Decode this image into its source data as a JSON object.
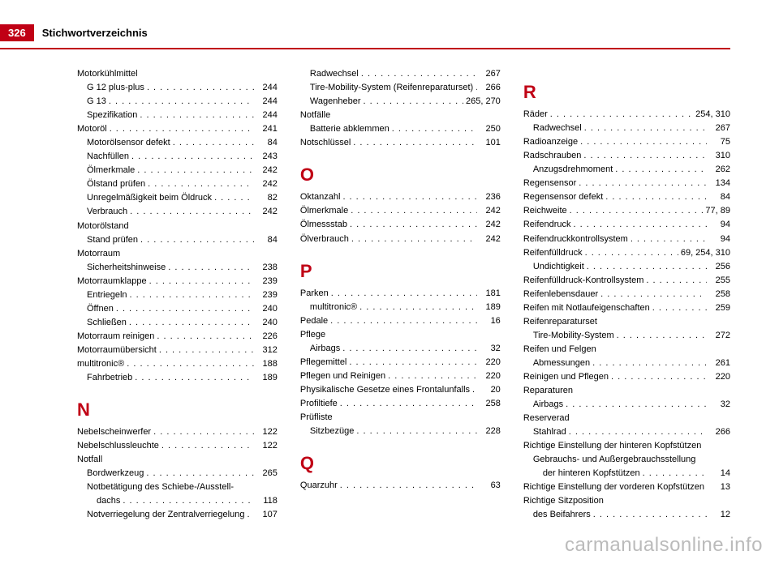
{
  "header": {
    "page_number": "326",
    "title": "Stichwortverzeichnis",
    "accent_color": "#c00015",
    "text_color": "#000000",
    "background": "#ffffff"
  },
  "watermark": "carmanualsonline.info",
  "col1": [
    {
      "t": "heading",
      "label": "Motorkühlmittel"
    },
    {
      "t": "sub",
      "label": "G 12 plus-plus",
      "pg": "244"
    },
    {
      "t": "sub",
      "label": "G 13",
      "pg": "244"
    },
    {
      "t": "sub",
      "label": "Spezifikation",
      "pg": "244"
    },
    {
      "t": "entry",
      "label": "Motoröl",
      "pg": "241"
    },
    {
      "t": "sub",
      "label": "Motorölsensor defekt",
      "pg": "84"
    },
    {
      "t": "sub",
      "label": "Nachfüllen",
      "pg": "243"
    },
    {
      "t": "sub",
      "label": "Ölmerkmale",
      "pg": "242"
    },
    {
      "t": "sub",
      "label": "Ölstand prüfen",
      "pg": "242"
    },
    {
      "t": "sub",
      "label": "Unregelmäßigkeit beim Öldruck",
      "pg": "82"
    },
    {
      "t": "sub",
      "label": "Verbrauch",
      "pg": "242"
    },
    {
      "t": "heading",
      "label": "Motorölstand"
    },
    {
      "t": "sub",
      "label": "Stand prüfen",
      "pg": "84"
    },
    {
      "t": "heading",
      "label": "Motorraum"
    },
    {
      "t": "sub",
      "label": "Sicherheitshinweise",
      "pg": "238"
    },
    {
      "t": "entry",
      "label": "Motorraumklappe",
      "pg": "239"
    },
    {
      "t": "sub",
      "label": "Entriegeln",
      "pg": "239"
    },
    {
      "t": "sub",
      "label": "Öffnen",
      "pg": "240"
    },
    {
      "t": "sub",
      "label": "Schließen",
      "pg": "240"
    },
    {
      "t": "entry",
      "label": "Motorraum reinigen",
      "pg": "226"
    },
    {
      "t": "entry",
      "label": "Motorraumübersicht",
      "pg": "312"
    },
    {
      "t": "entry",
      "label": "multitronic®",
      "pg": "188"
    },
    {
      "t": "sub",
      "label": "Fahrbetrieb",
      "pg": "189"
    },
    {
      "t": "letter",
      "label": "N"
    },
    {
      "t": "entry",
      "label": "Nebelscheinwerfer",
      "pg": "122"
    },
    {
      "t": "entry",
      "label": "Nebelschlussleuchte",
      "pg": "122"
    },
    {
      "t": "heading",
      "label": "Notfall"
    },
    {
      "t": "sub",
      "label": "Bordwerkzeug",
      "pg": "265"
    },
    {
      "t": "subheading",
      "label": "Notbetätigung des Schiebe-/Ausstell-"
    },
    {
      "t": "sub2",
      "label": "dachs",
      "pg": "118"
    },
    {
      "t": "sub",
      "label": "Notverriegelung der Zentralverriegelung",
      "pg": "107"
    }
  ],
  "col2": [
    {
      "t": "sub",
      "label": "Radwechsel",
      "pg": "267"
    },
    {
      "t": "sub",
      "label": "Tire-Mobility-System (Reifenreparaturset)",
      "pg": "266"
    },
    {
      "t": "sub",
      "label": "Wagenheber",
      "pg": "265, 270"
    },
    {
      "t": "heading",
      "label": "Notfälle"
    },
    {
      "t": "sub",
      "label": "Batterie abklemmen",
      "pg": "250"
    },
    {
      "t": "entry",
      "label": "Notschlüssel",
      "pg": "101"
    },
    {
      "t": "letter",
      "label": "O"
    },
    {
      "t": "entry",
      "label": "Oktanzahl",
      "pg": "236"
    },
    {
      "t": "entry",
      "label": "Ölmerkmale",
      "pg": "242"
    },
    {
      "t": "entry",
      "label": "Ölmessstab",
      "pg": "242"
    },
    {
      "t": "entry",
      "label": "Ölverbrauch",
      "pg": "242"
    },
    {
      "t": "letter",
      "label": "P"
    },
    {
      "t": "entry",
      "label": "Parken",
      "pg": "181"
    },
    {
      "t": "sub",
      "label": "multitronic®",
      "pg": "189"
    },
    {
      "t": "entry",
      "label": "Pedale",
      "pg": "16"
    },
    {
      "t": "heading",
      "label": "Pflege"
    },
    {
      "t": "sub",
      "label": "Airbags",
      "pg": "32"
    },
    {
      "t": "entry",
      "label": "Pflegemittel",
      "pg": "220"
    },
    {
      "t": "entry",
      "label": "Pflegen und Reinigen",
      "pg": "220"
    },
    {
      "t": "entry",
      "label": "Physikalische Gesetze eines Frontalunfalls",
      "pg": "20"
    },
    {
      "t": "entry",
      "label": "Profiltiefe",
      "pg": "258"
    },
    {
      "t": "heading",
      "label": "Prüfliste"
    },
    {
      "t": "sub",
      "label": "Sitzbezüge",
      "pg": "228"
    },
    {
      "t": "letter",
      "label": "Q"
    },
    {
      "t": "entry",
      "label": "Quarzuhr",
      "pg": "63"
    }
  ],
  "col3": [
    {
      "t": "letter",
      "label": "R"
    },
    {
      "t": "entry",
      "label": "Räder",
      "pg": "254, 310"
    },
    {
      "t": "sub",
      "label": "Radwechsel",
      "pg": "267"
    },
    {
      "t": "entry",
      "label": "Radioanzeige",
      "pg": "75"
    },
    {
      "t": "entry",
      "label": "Radschrauben",
      "pg": "310"
    },
    {
      "t": "sub",
      "label": "Anzugsdrehmoment",
      "pg": "262"
    },
    {
      "t": "entry",
      "label": "Regensensor",
      "pg": "134"
    },
    {
      "t": "entry",
      "label": "Regensensor defekt",
      "pg": "84"
    },
    {
      "t": "entry",
      "label": "Reichweite",
      "pg": "77, 89"
    },
    {
      "t": "entry",
      "label": "Reifendruck",
      "pg": "94"
    },
    {
      "t": "entry",
      "label": "Reifendruckkontrollsystem",
      "pg": "94"
    },
    {
      "t": "entry",
      "label": "Reifenfülldruck",
      "pg": "69, 254, 310"
    },
    {
      "t": "sub",
      "label": "Undichtigkeit",
      "pg": "256"
    },
    {
      "t": "entry",
      "label": "Reifenfülldruck-Kontrollsystem",
      "pg": "255"
    },
    {
      "t": "entry",
      "label": "Reifenlebensdauer",
      "pg": "258"
    },
    {
      "t": "entry",
      "label": "Reifen mit Notlaufeigenschaften",
      "pg": "259"
    },
    {
      "t": "heading",
      "label": "Reifenreparaturset"
    },
    {
      "t": "sub",
      "label": "Tire-Mobility-System",
      "pg": "272"
    },
    {
      "t": "heading",
      "label": "Reifen und Felgen"
    },
    {
      "t": "sub",
      "label": "Abmessungen",
      "pg": "261"
    },
    {
      "t": "entry",
      "label": "Reinigen und Pflegen",
      "pg": "220"
    },
    {
      "t": "heading",
      "label": "Reparaturen"
    },
    {
      "t": "sub",
      "label": "Airbags",
      "pg": "32"
    },
    {
      "t": "heading",
      "label": "Reserverad"
    },
    {
      "t": "sub",
      "label": "Stahlrad",
      "pg": "266"
    },
    {
      "t": "heading",
      "label": "Richtige Einstellung der hinteren Kopfstützen"
    },
    {
      "t": "subheading",
      "label": "Gebrauchs- und Außergebrauchsstellung"
    },
    {
      "t": "sub2",
      "label": "der hinteren Kopfstützen",
      "pg": "14"
    },
    {
      "t": "entry",
      "label": "Richtige Einstellung der vorderen Kopfstützen",
      "pg": "13"
    },
    {
      "t": "heading",
      "label": "Richtige Sitzposition"
    },
    {
      "t": "sub",
      "label": "des Beifahrers",
      "pg": "12"
    }
  ]
}
